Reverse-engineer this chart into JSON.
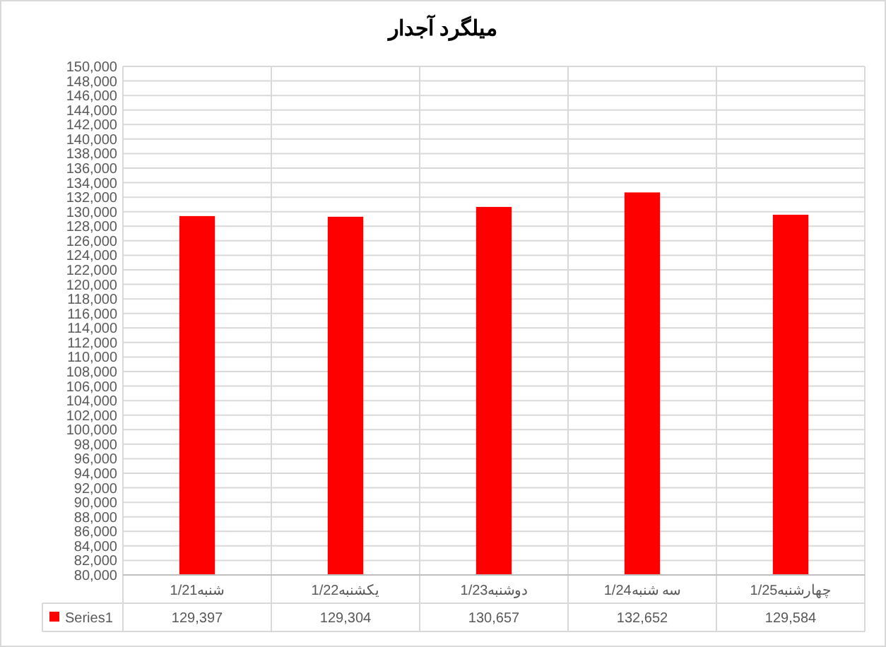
{
  "chart_data": {
    "type": "bar",
    "title": "میلگرد آجدار",
    "categories": [
      "شنبه1/21",
      "یکشنبه1/22",
      "دوشنبه1/23",
      "سه شنبه1/24",
      "چهارشنبه1/25"
    ],
    "series": [
      {
        "name": "Series1",
        "color": "#ff0000",
        "values": [
          129397,
          129304,
          130657,
          132652,
          129584
        ],
        "value_labels": [
          "129,397",
          "129,304",
          "130,657",
          "132,652",
          "129,584"
        ]
      }
    ],
    "ylim": [
      80000,
      150000
    ],
    "yticks": [
      {
        "value": 80000,
        "label": "80,000"
      },
      {
        "value": 82000,
        "label": "82,000"
      },
      {
        "value": 84000,
        "label": "84,000"
      },
      {
        "value": 86000,
        "label": "86,000"
      },
      {
        "value": 88000,
        "label": "88,000"
      },
      {
        "value": 90000,
        "label": "90,000"
      },
      {
        "value": 92000,
        "label": "92,000"
      },
      {
        "value": 94000,
        "label": "94,000"
      },
      {
        "value": 96000,
        "label": "96,000"
      },
      {
        "value": 98000,
        "label": "98,000"
      },
      {
        "value": 100000,
        "label": "100,000"
      },
      {
        "value": 102000,
        "label": "102,000"
      },
      {
        "value": 104000,
        "label": "104,000"
      },
      {
        "value": 106000,
        "label": "106,000"
      },
      {
        "value": 108000,
        "label": "108,000"
      },
      {
        "value": 110000,
        "label": "110,000"
      },
      {
        "value": 112000,
        "label": "112,000"
      },
      {
        "value": 114000,
        "label": "114,000"
      },
      {
        "value": 116000,
        "label": "116,000"
      },
      {
        "value": 118000,
        "label": "118,000"
      },
      {
        "value": 120000,
        "label": "120,000"
      },
      {
        "value": 122000,
        "label": "122,000"
      },
      {
        "value": 124000,
        "label": "124,000"
      },
      {
        "value": 126000,
        "label": "126,000"
      },
      {
        "value": 128000,
        "label": "128,000"
      },
      {
        "value": 130000,
        "label": "130,000"
      },
      {
        "value": 132000,
        "label": "132,000"
      },
      {
        "value": 134000,
        "label": "134,000"
      },
      {
        "value": 136000,
        "label": "136,000"
      },
      {
        "value": 138000,
        "label": "138,000"
      },
      {
        "value": 140000,
        "label": "140,000"
      },
      {
        "value": 142000,
        "label": "142,000"
      },
      {
        "value": 144000,
        "label": "144,000"
      },
      {
        "value": 146000,
        "label": "146,000"
      },
      {
        "value": 148000,
        "label": "148,000"
      },
      {
        "value": 150000,
        "label": "150,000"
      }
    ],
    "grid": "y",
    "legend": "bottom"
  }
}
